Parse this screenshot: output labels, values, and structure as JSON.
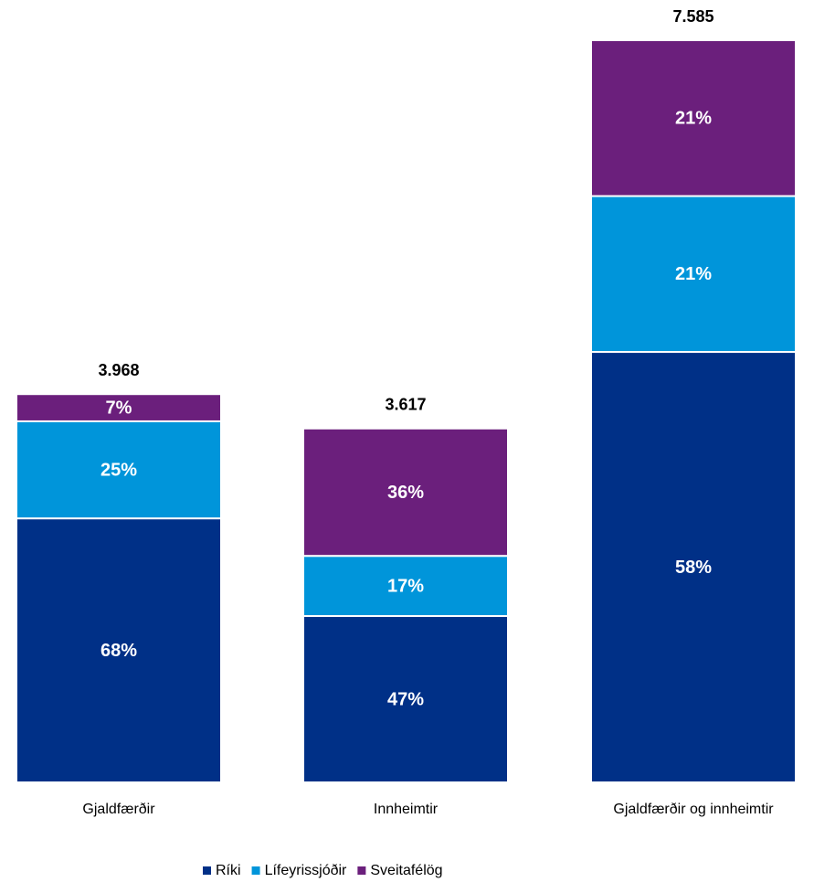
{
  "chart_data": {
    "type": "stacked-share-bar",
    "categories": [
      "Gjaldfærðir",
      "Innheimtir",
      "Gjaldfærðir og innheimtir"
    ],
    "totals": {
      "values": [
        3968,
        3617,
        7585
      ],
      "value_labels": [
        "3.968",
        "3.617",
        "7.585"
      ]
    },
    "series": [
      {
        "name": "Ríki",
        "color": "#003087",
        "values": [
          68,
          47,
          58
        ],
        "value_labels": [
          "68%",
          "47%",
          "58%"
        ]
      },
      {
        "name": "Lífeyrissjóðir",
        "color": "#0095da",
        "values": [
          25,
          17,
          21
        ],
        "value_labels": [
          "25%",
          "17%",
          "21%"
        ]
      },
      {
        "name": "Sveitafélög",
        "color": "#6b1f7c",
        "values": [
          7,
          36,
          21
        ],
        "value_labels": [
          "7%",
          "36%",
          "21%"
        ]
      }
    ],
    "legend": "bottom"
  }
}
